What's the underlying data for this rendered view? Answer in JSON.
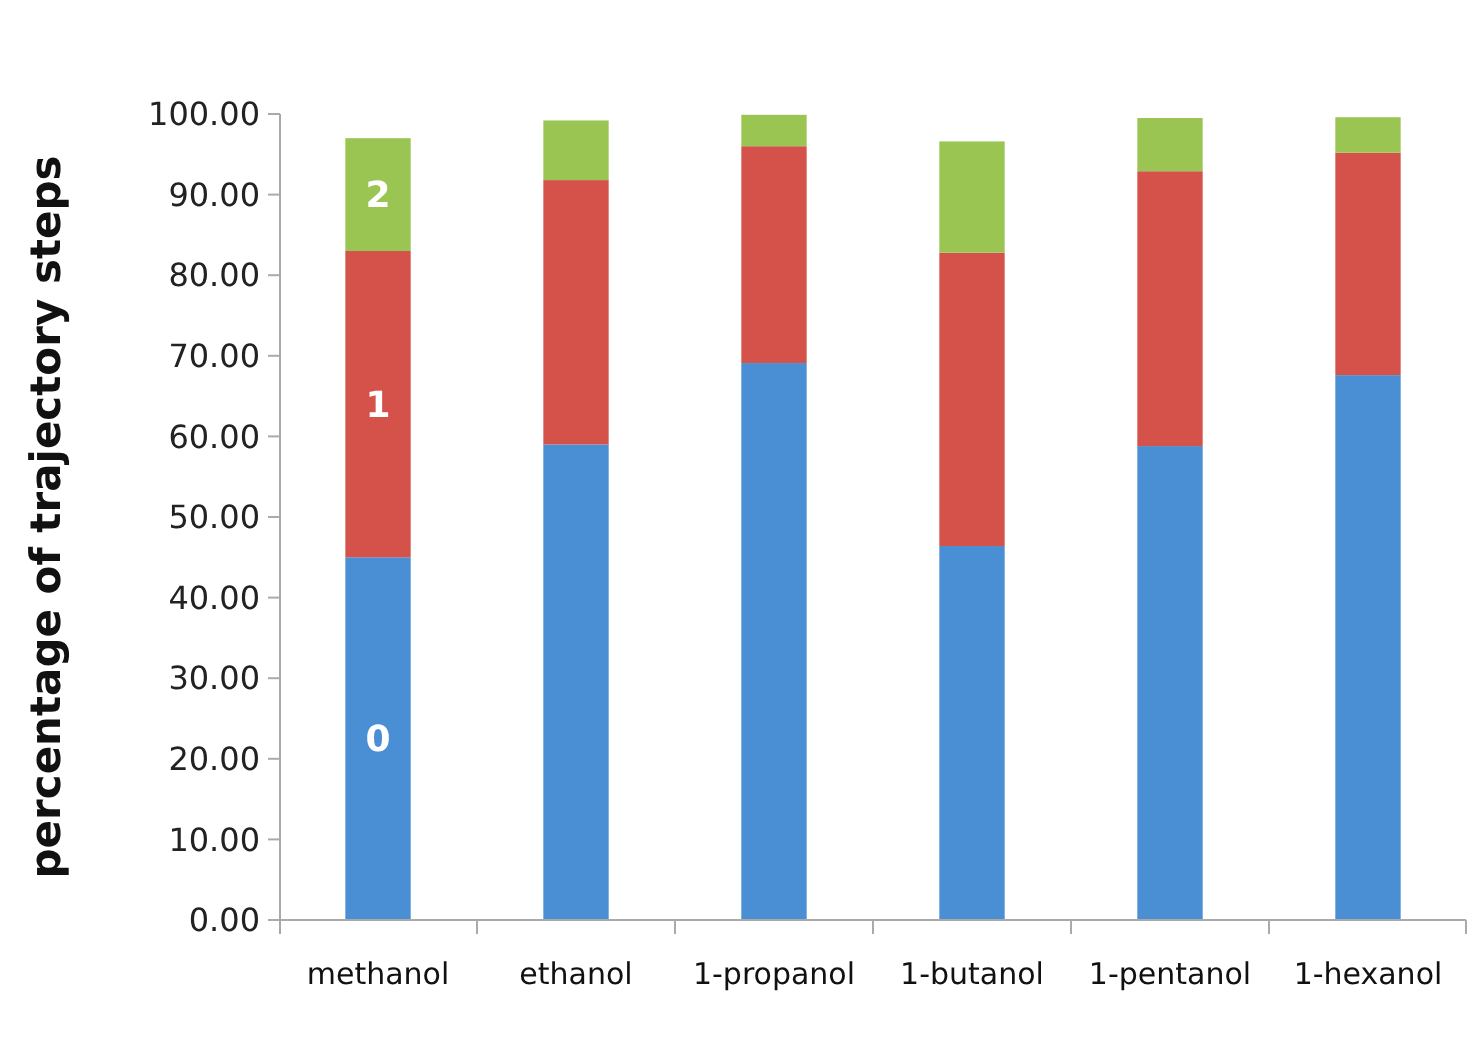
{
  "chart_data": {
    "type": "bar",
    "stacked": true,
    "ylabel": "percentage of trajectory steps",
    "categories": [
      "methanol",
      "ethanol",
      "1-propanol",
      "1-butanol",
      "1-pentanol",
      "1-hexanol"
    ],
    "series": [
      {
        "name": "0",
        "color": "#4a8fd4",
        "values": [
          45,
          59,
          69.1,
          46.4,
          58.8,
          67.6
        ]
      },
      {
        "name": "1",
        "color": "#d4524a",
        "values": [
          38,
          32.8,
          26.9,
          36.4,
          34.1,
          27.6
        ]
      },
      {
        "name": "2",
        "color": "#9bc553",
        "values": [
          14,
          7.4,
          3.9,
          13.8,
          6.6,
          4.4
        ]
      }
    ],
    "ylim": [
      0,
      100
    ],
    "yticks": [
      {
        "value": 0,
        "label": "0.00"
      },
      {
        "value": 10,
        "label": "10.00"
      },
      {
        "value": 20,
        "label": "20.00"
      },
      {
        "value": 30,
        "label": "30.00"
      },
      {
        "value": 40,
        "label": "40.00"
      },
      {
        "value": 50,
        "label": "50.00"
      },
      {
        "value": 60,
        "label": "60.00"
      },
      {
        "value": 70,
        "label": "70.00"
      },
      {
        "value": 80,
        "label": "80.00"
      },
      {
        "value": 90,
        "label": "90.00"
      },
      {
        "value": 100,
        "label": "100.00"
      }
    ],
    "grid": false
  }
}
